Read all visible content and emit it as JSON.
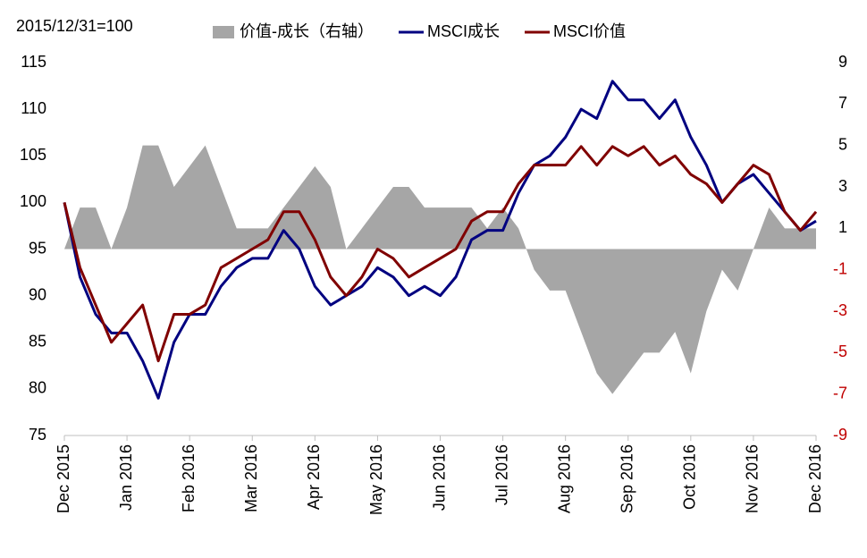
{
  "chart_data": {
    "type": "line",
    "base_label": "2015/12/31=100",
    "categories": [
      "Dec 2015",
      null,
      null,
      null,
      "Jan 2016",
      null,
      null,
      null,
      "Feb 2016",
      null,
      null,
      null,
      "Mar 2016",
      null,
      null,
      null,
      "Apr 2016",
      null,
      null,
      null,
      "May 2016",
      null,
      null,
      null,
      "Jun 2016",
      null,
      null,
      null,
      "Jul 2016",
      null,
      null,
      null,
      "Aug 2016",
      null,
      null,
      null,
      "Sep 2016",
      null,
      null,
      null,
      "Oct 2016",
      null,
      null,
      null,
      "Nov 2016",
      null,
      null,
      null,
      "Dec 2016"
    ],
    "series": [
      {
        "name": "价值-成长（右轴）",
        "type": "area",
        "axis": "y2",
        "color": "#a6a6a6",
        "values": [
          0,
          2,
          2,
          0,
          2,
          5,
          5,
          3,
          4,
          5,
          3,
          1,
          1,
          1,
          2,
          3,
          4,
          3,
          0,
          1,
          2,
          3,
          3,
          2,
          2,
          2,
          2,
          1,
          2,
          1,
          -1,
          -2,
          -2,
          -4,
          -6,
          -7,
          -6,
          -5,
          -5,
          -4,
          -6,
          -3,
          -1,
          -2,
          0,
          2,
          1,
          1,
          1
        ]
      },
      {
        "name": "MSCI成长",
        "type": "line",
        "color": "#000080",
        "values": [
          100,
          92,
          88,
          86,
          86,
          83,
          79,
          85,
          88,
          88,
          91,
          93,
          94,
          94,
          97,
          95,
          91,
          89,
          90,
          91,
          93,
          92,
          90,
          91,
          90,
          92,
          96,
          97,
          97,
          101,
          104,
          105,
          107,
          110,
          109,
          113,
          111,
          111,
          109,
          111,
          107,
          104,
          100,
          102,
          103,
          101,
          99,
          97,
          98
        ]
      },
      {
        "name": "MSCI价值",
        "type": "line",
        "color": "#800000",
        "values": [
          100,
          93,
          89,
          85,
          87,
          89,
          83,
          88,
          88,
          89,
          93,
          94,
          95,
          96,
          99,
          99,
          96,
          92,
          90,
          92,
          95,
          94,
          92,
          93,
          94,
          95,
          98,
          99,
          99,
          102,
          104,
          104,
          104,
          106,
          104,
          106,
          105,
          106,
          104,
          105,
          103,
          102,
          100,
          102,
          104,
          103,
          99,
          97,
          99
        ]
      }
    ],
    "ylim": [
      75,
      115
    ],
    "yticks": [
      75,
      80,
      85,
      90,
      95,
      100,
      105,
      110,
      115
    ],
    "y2lim": [
      -9,
      9
    ],
    "y2ticks": [
      -9,
      -7,
      -5,
      -3,
      -1,
      1,
      3,
      5,
      7,
      9
    ],
    "y2_negative_color": "#c00000",
    "legend": "top"
  }
}
